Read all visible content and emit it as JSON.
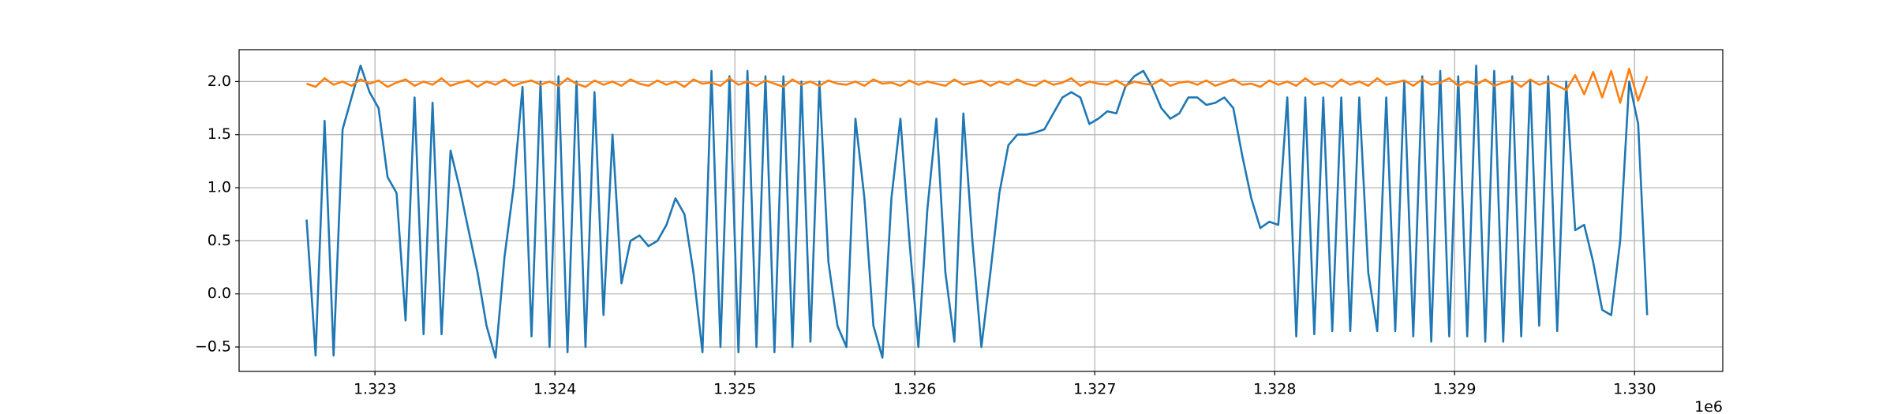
{
  "chart_data": {
    "type": "line",
    "x": [
      1322620,
      1322670,
      1322720,
      1322770,
      1322820,
      1322870,
      1322920,
      1322970,
      1323020,
      1323070,
      1323120,
      1323170,
      1323220,
      1323270,
      1323320,
      1323370,
      1323420,
      1323470,
      1323520,
      1323570,
      1323620,
      1323670,
      1323720,
      1323770,
      1323820,
      1323870,
      1323920,
      1323970,
      1324020,
      1324070,
      1324120,
      1324170,
      1324220,
      1324270,
      1324320,
      1324370,
      1324420,
      1324470,
      1324520,
      1324570,
      1324620,
      1324670,
      1324720,
      1324770,
      1324820,
      1324870,
      1324920,
      1324970,
      1325020,
      1325070,
      1325120,
      1325170,
      1325220,
      1325270,
      1325320,
      1325370,
      1325420,
      1325470,
      1325520,
      1325570,
      1325620,
      1325670,
      1325720,
      1325770,
      1325820,
      1325870,
      1325920,
      1325970,
      1326020,
      1326070,
      1326120,
      1326170,
      1326220,
      1326270,
      1326320,
      1326370,
      1326420,
      1326470,
      1326520,
      1326570,
      1326620,
      1326670,
      1326720,
      1326770,
      1326820,
      1326870,
      1326920,
      1326970,
      1327020,
      1327070,
      1327120,
      1327170,
      1327220,
      1327270,
      1327320,
      1327370,
      1327420,
      1327470,
      1327520,
      1327570,
      1327620,
      1327670,
      1327720,
      1327770,
      1327820,
      1327870,
      1327920,
      1327970,
      1328020,
      1328070,
      1328120,
      1328170,
      1328220,
      1328270,
      1328320,
      1328370,
      1328420,
      1328470,
      1328520,
      1328570,
      1328620,
      1328670,
      1328720,
      1328770,
      1328820,
      1328870,
      1328920,
      1328970,
      1329020,
      1329070,
      1329120,
      1329170,
      1329220,
      1329270,
      1329320,
      1329370,
      1329420,
      1329470,
      1329520,
      1329570,
      1329620,
      1329670,
      1329720,
      1329770,
      1329820,
      1329870,
      1329920,
      1329970,
      1330020,
      1330070
    ],
    "series": [
      {
        "color": "#1f77b4",
        "values": [
          0.7,
          -0.58,
          1.63,
          -0.58,
          1.55,
          1.85,
          2.15,
          1.9,
          1.75,
          1.1,
          0.95,
          -0.25,
          1.85,
          -0.38,
          1.8,
          -0.38,
          1.35,
          1.0,
          0.6,
          0.2,
          -0.3,
          -0.6,
          0.35,
          1.0,
          1.95,
          -0.4,
          2.0,
          -0.5,
          2.05,
          -0.55,
          2.0,
          -0.5,
          1.9,
          -0.2,
          1.5,
          0.1,
          0.5,
          0.55,
          0.45,
          0.5,
          0.65,
          0.9,
          0.75,
          0.2,
          -0.55,
          2.1,
          -0.5,
          2.05,
          -0.55,
          2.1,
          -0.5,
          2.05,
          -0.55,
          2.05,
          -0.5,
          2.0,
          -0.45,
          2.0,
          0.3,
          -0.3,
          -0.5,
          1.65,
          0.9,
          -0.3,
          -0.6,
          0.9,
          1.65,
          0.5,
          -0.5,
          0.8,
          1.65,
          0.2,
          -0.45,
          1.7,
          0.5,
          -0.5,
          0.2,
          0.95,
          1.4,
          1.5,
          1.5,
          1.52,
          1.55,
          1.7,
          1.85,
          1.9,
          1.85,
          1.6,
          1.65,
          1.72,
          1.7,
          1.95,
          2.05,
          2.1,
          1.95,
          1.75,
          1.65,
          1.7,
          1.85,
          1.85,
          1.78,
          1.8,
          1.85,
          1.75,
          1.3,
          0.9,
          0.62,
          0.68,
          0.65,
          1.85,
          -0.4,
          1.85,
          -0.38,
          1.85,
          -0.35,
          1.85,
          -0.35,
          1.85,
          0.2,
          -0.35,
          1.85,
          -0.35,
          2.0,
          -0.4,
          2.05,
          -0.45,
          2.1,
          -0.4,
          2.05,
          -0.4,
          2.15,
          -0.45,
          2.1,
          -0.45,
          2.05,
          -0.4,
          2.0,
          -0.3,
          2.05,
          -0.35,
          2.0,
          0.6,
          0.65,
          0.3,
          -0.15,
          -0.2,
          0.5,
          2.0,
          1.6,
          -0.2
        ]
      },
      {
        "color": "#ff7f0e",
        "values": [
          1.98,
          1.95,
          2.03,
          1.97,
          2.0,
          1.96,
          2.02,
          1.98,
          2.01,
          1.95,
          1.99,
          2.02,
          1.96,
          2.0,
          1.97,
          2.03,
          1.96,
          1.99,
          2.01,
          1.95,
          2.0,
          1.97,
          2.02,
          1.96,
          1.99,
          2.01,
          1.97,
          2.0,
          1.96,
          2.03,
          1.98,
          1.95,
          2.01,
          1.97,
          2.0,
          1.96,
          2.02,
          1.98,
          1.96,
          2.01,
          1.97,
          2.0,
          1.95,
          2.02,
          1.98,
          1.99,
          1.96,
          2.03,
          1.97,
          2.0,
          1.96,
          2.01,
          1.98,
          1.95,
          2.02,
          1.97,
          2.0,
          1.96,
          2.01,
          1.98,
          1.97,
          2.0,
          1.96,
          2.02,
          1.98,
          1.99,
          1.96,
          2.01,
          1.97,
          2.0,
          1.98,
          1.96,
          2.02,
          1.97,
          1.99,
          2.01,
          1.96,
          2.0,
          1.97,
          2.02,
          1.98,
          1.96,
          2.01,
          1.97,
          1.99,
          2.03,
          1.96,
          2.0,
          1.98,
          1.97,
          2.01,
          1.96,
          2.0,
          1.98,
          1.97,
          2.02,
          1.96,
          1.99,
          2.0,
          1.97,
          2.01,
          1.96,
          1.99,
          2.02,
          1.97,
          1.98,
          1.95,
          2.01,
          1.97,
          2.0,
          1.96,
          2.03,
          1.97,
          1.99,
          1.95,
          2.02,
          1.97,
          2.0,
          1.96,
          2.03,
          1.97,
          1.99,
          2.01,
          1.96,
          2.02,
          1.97,
          1.99,
          2.03,
          1.96,
          2.0,
          1.97,
          2.02,
          1.96,
          1.99,
          2.01,
          1.95,
          2.02,
          1.97,
          2.0,
          1.96,
          1.92,
          2.06,
          1.88,
          2.09,
          1.85,
          2.1,
          1.8,
          2.12,
          1.82,
          2.05
        ]
      }
    ],
    "xlim": [
      1322245,
      1330490
    ],
    "ylim": [
      -0.73,
      2.3
    ],
    "xticks": [
      {
        "value": 1323000,
        "label": "1.323"
      },
      {
        "value": 1324000,
        "label": "1.324"
      },
      {
        "value": 1325000,
        "label": "1.325"
      },
      {
        "value": 1326000,
        "label": "1.326"
      },
      {
        "value": 1327000,
        "label": "1.327"
      },
      {
        "value": 1328000,
        "label": "1.328"
      },
      {
        "value": 1329000,
        "label": "1.329"
      },
      {
        "value": 1330000,
        "label": "1.330"
      }
    ],
    "yticks": [
      {
        "value": -0.5,
        "label": "−0.5"
      },
      {
        "value": 0,
        "label": "0.0"
      },
      {
        "value": 0.5,
        "label": "0.5"
      },
      {
        "value": 1,
        "label": "1.0"
      },
      {
        "value": 1.5,
        "label": "1.5"
      },
      {
        "value": 2,
        "label": "2.0"
      }
    ],
    "x_offset_label": "1e6",
    "grid": true
  }
}
